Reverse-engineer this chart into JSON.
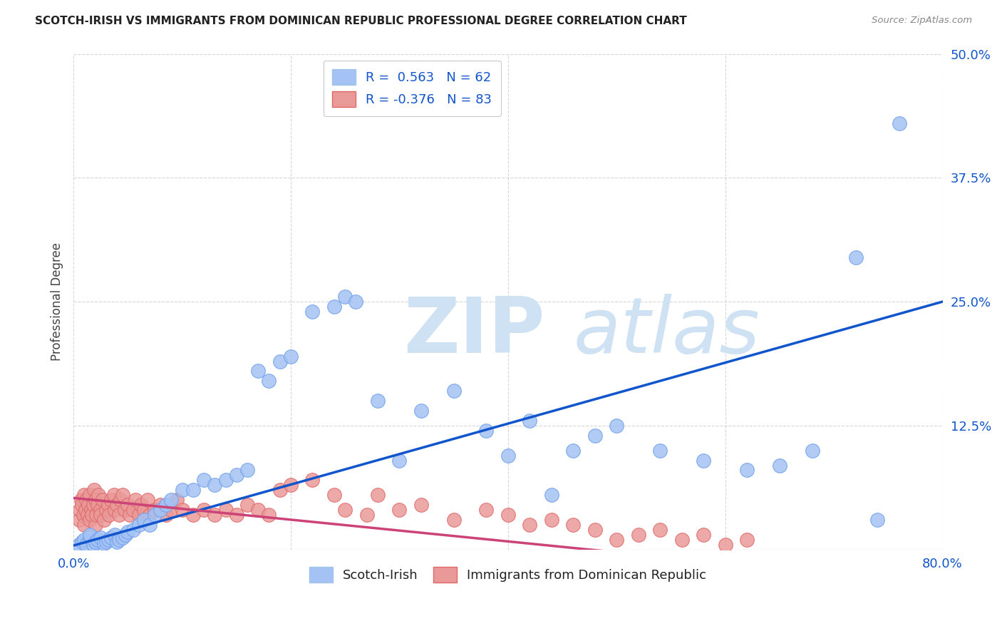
{
  "title": "SCOTCH-IRISH VS IMMIGRANTS FROM DOMINICAN REPUBLIC PROFESSIONAL DEGREE CORRELATION CHART",
  "source": "Source: ZipAtlas.com",
  "ylabel": "Professional Degree",
  "legend_label1": "Scotch-Irish",
  "legend_label2": "Immigrants from Dominican Republic",
  "R1": 0.563,
  "N1": 62,
  "R2": -0.376,
  "N2": 83,
  "xmin": 0.0,
  "xmax": 0.8,
  "ymin": 0.0,
  "ymax": 0.5,
  "color_blue": "#a4c2f4",
  "color_pink": "#ea9999",
  "line_blue": "#1155cc",
  "line_pink": "#cc4477",
  "watermark_ZIP": "#c9daf8",
  "watermark_atlas": "#c9daf8",
  "blue_line_x0": 0.0,
  "blue_line_y0": 0.004,
  "blue_line_x1": 0.8,
  "blue_line_y1": 0.25,
  "pink_line_x0": 0.0,
  "pink_line_y0": 0.052,
  "pink_line_x1": 0.52,
  "pink_line_y1": -0.005,
  "scotch_x": [
    0.005,
    0.008,
    0.01,
    0.012,
    0.015,
    0.015,
    0.018,
    0.02,
    0.022,
    0.025,
    0.028,
    0.03,
    0.032,
    0.035,
    0.038,
    0.04,
    0.042,
    0.045,
    0.048,
    0.05,
    0.055,
    0.06,
    0.065,
    0.07,
    0.075,
    0.08,
    0.085,
    0.09,
    0.1,
    0.11,
    0.12,
    0.13,
    0.14,
    0.15,
    0.16,
    0.17,
    0.18,
    0.19,
    0.2,
    0.22,
    0.24,
    0.25,
    0.26,
    0.28,
    0.3,
    0.32,
    0.35,
    0.38,
    0.4,
    0.42,
    0.44,
    0.46,
    0.48,
    0.5,
    0.54,
    0.58,
    0.62,
    0.65,
    0.68,
    0.72,
    0.74,
    0.76
  ],
  "scotch_y": [
    0.005,
    0.008,
    0.01,
    0.005,
    0.012,
    0.015,
    0.005,
    0.008,
    0.01,
    0.012,
    0.006,
    0.008,
    0.01,
    0.012,
    0.015,
    0.008,
    0.01,
    0.012,
    0.015,
    0.018,
    0.02,
    0.025,
    0.03,
    0.025,
    0.035,
    0.04,
    0.045,
    0.05,
    0.06,
    0.06,
    0.07,
    0.065,
    0.07,
    0.075,
    0.08,
    0.18,
    0.17,
    0.19,
    0.195,
    0.24,
    0.245,
    0.255,
    0.25,
    0.15,
    0.09,
    0.14,
    0.16,
    0.12,
    0.095,
    0.13,
    0.055,
    0.1,
    0.115,
    0.125,
    0.1,
    0.09,
    0.08,
    0.085,
    0.1,
    0.295,
    0.03,
    0.43
  ],
  "dom_x": [
    0.005,
    0.006,
    0.007,
    0.008,
    0.009,
    0.01,
    0.01,
    0.011,
    0.012,
    0.013,
    0.014,
    0.015,
    0.015,
    0.016,
    0.017,
    0.018,
    0.019,
    0.02,
    0.02,
    0.021,
    0.022,
    0.023,
    0.025,
    0.025,
    0.027,
    0.028,
    0.03,
    0.032,
    0.033,
    0.035,
    0.037,
    0.038,
    0.04,
    0.042,
    0.043,
    0.045,
    0.047,
    0.05,
    0.052,
    0.055,
    0.057,
    0.06,
    0.062,
    0.065,
    0.068,
    0.07,
    0.075,
    0.08,
    0.085,
    0.09,
    0.095,
    0.1,
    0.11,
    0.12,
    0.13,
    0.14,
    0.15,
    0.16,
    0.17,
    0.18,
    0.19,
    0.2,
    0.22,
    0.24,
    0.25,
    0.27,
    0.28,
    0.3,
    0.32,
    0.35,
    0.38,
    0.4,
    0.42,
    0.44,
    0.46,
    0.48,
    0.5,
    0.52,
    0.54,
    0.56,
    0.58,
    0.6,
    0.62
  ],
  "dom_y": [
    0.03,
    0.04,
    0.05,
    0.045,
    0.035,
    0.055,
    0.025,
    0.04,
    0.05,
    0.035,
    0.045,
    0.055,
    0.03,
    0.04,
    0.035,
    0.045,
    0.06,
    0.05,
    0.025,
    0.035,
    0.045,
    0.055,
    0.04,
    0.035,
    0.05,
    0.03,
    0.04,
    0.045,
    0.035,
    0.05,
    0.055,
    0.04,
    0.045,
    0.035,
    0.05,
    0.055,
    0.04,
    0.045,
    0.035,
    0.04,
    0.05,
    0.035,
    0.045,
    0.04,
    0.05,
    0.035,
    0.04,
    0.045,
    0.035,
    0.04,
    0.05,
    0.04,
    0.035,
    0.04,
    0.035,
    0.04,
    0.035,
    0.045,
    0.04,
    0.035,
    0.06,
    0.065,
    0.07,
    0.055,
    0.04,
    0.035,
    0.055,
    0.04,
    0.045,
    0.03,
    0.04,
    0.035,
    0.025,
    0.03,
    0.025,
    0.02,
    0.01,
    0.015,
    0.02,
    0.01,
    0.015,
    0.005,
    0.01
  ]
}
